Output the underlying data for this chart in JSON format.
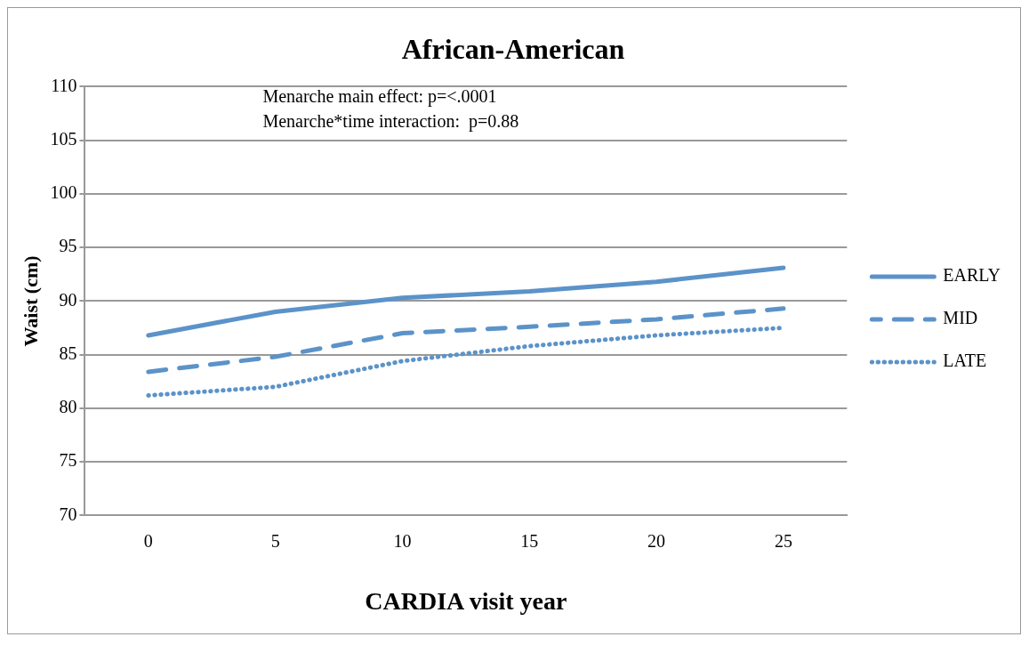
{
  "chart_data": {
    "type": "line",
    "title": "African-American",
    "xlabel": "CARDIA visit year",
    "ylabel": "Waist (cm)",
    "categories": [
      "0",
      "5",
      "10",
      "15",
      "20",
      "25"
    ],
    "series": [
      {
        "name": "EARLY",
        "color": "#5b93c9",
        "line_style": "solid",
        "values": [
          86.8,
          89.0,
          90.3,
          90.9,
          91.8,
          93.1
        ]
      },
      {
        "name": "MID",
        "color": "#5b93c9",
        "line_style": "dashed",
        "values": [
          83.4,
          84.8,
          87.0,
          87.6,
          88.3,
          89.3
        ]
      },
      {
        "name": "LATE",
        "color": "#5b93c9",
        "line_style": "dotted",
        "values": [
          81.2,
          82.0,
          84.4,
          85.8,
          86.8,
          87.5
        ]
      }
    ],
    "ylim": [
      70,
      110
    ],
    "yticks": [
      70,
      75,
      80,
      85,
      90,
      95,
      100,
      105,
      110
    ],
    "grid": "y",
    "legend": "right",
    "marker": "none",
    "annotations": [
      "Menarche main effect: p=<.0001",
      "Menarche*time interaction:  p=0.88"
    ]
  }
}
